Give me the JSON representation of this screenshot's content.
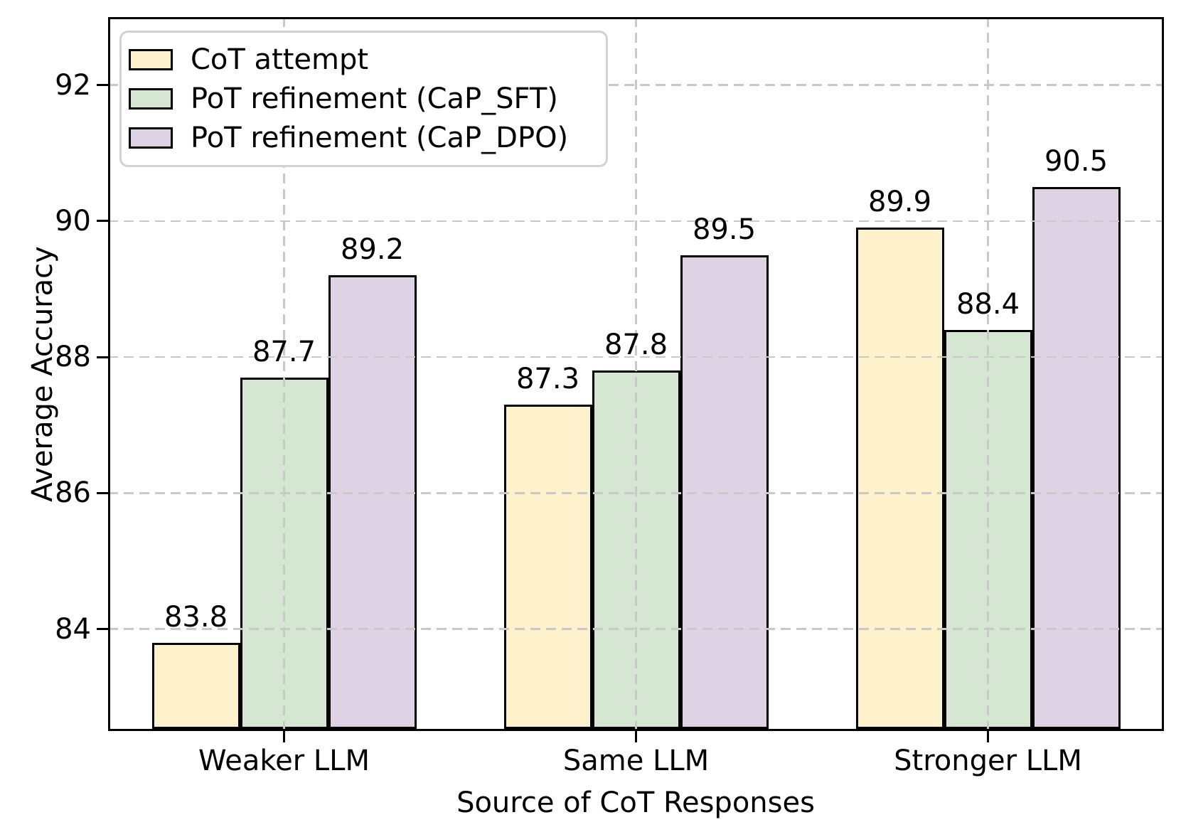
{
  "figure": {
    "background_color": "#ffffff",
    "text_color": "#000000"
  },
  "chart_data": {
    "type": "bar",
    "title": "",
    "xlabel": "Source of CoT Responses",
    "ylabel": "Average Accuracy",
    "categories": [
      "Weaker LLM",
      "Same LLM",
      "Stronger LLM"
    ],
    "series": [
      {
        "name": "CoT attempt",
        "color": "#FDF2CC",
        "edge_color": "#000000",
        "values": [
          83.8,
          87.3,
          89.9
        ]
      },
      {
        "name": "PoT refinement (CaP_SFT)",
        "color": "#D5E6D3",
        "edge_color": "#000000",
        "values": [
          87.7,
          87.8,
          88.4
        ]
      },
      {
        "name": "PoT refinement (CaP_DPO)",
        "color": "#DED3E4",
        "edge_color": "#000000",
        "values": [
          89.2,
          89.5,
          90.5
        ]
      }
    ],
    "bar_value_labels": [
      [
        83.8,
        87.3,
        89.9
      ],
      [
        87.7,
        87.8,
        88.4
      ],
      [
        89.2,
        89.5,
        90.5
      ]
    ],
    "ylim": [
      82.5,
      93.0
    ],
    "yticks": [
      84,
      86,
      88,
      90,
      92
    ],
    "grid": {
      "visible": true,
      "style": "dashed",
      "color": "#c9c9c9",
      "drawn_over_bars": true
    },
    "legend": {
      "position": "upper-left",
      "border_color": "#d2d2d2",
      "background": "#ffffff"
    }
  }
}
